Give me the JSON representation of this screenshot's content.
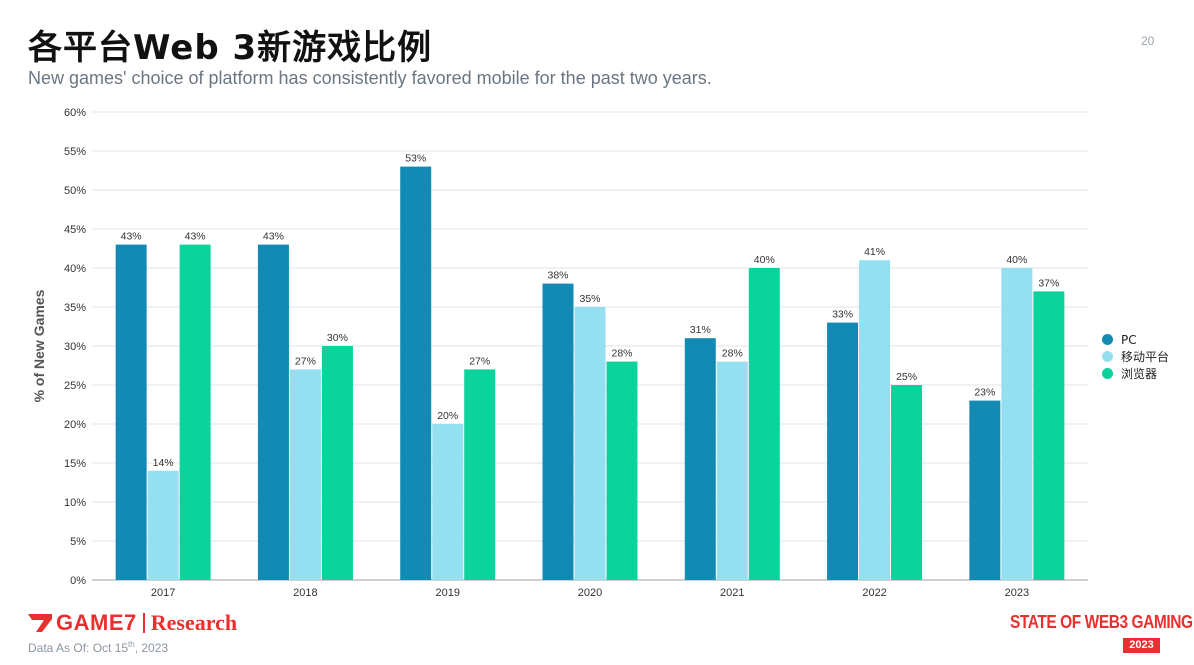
{
  "header": {
    "title": "各平台Web 3新游戏比例",
    "subtitle": "New games' choice of platform has consistently favored mobile for the past two years.",
    "page_number": "20"
  },
  "footer": {
    "brand": "GAME7",
    "brand_suffix": "Research",
    "data_as_of_prefix": "Data As Of: Oct 15",
    "data_as_of_sup": "th",
    "data_as_of_suffix": ", 2023",
    "report_name": "STATE OF WEB3 GAMING",
    "report_year": "2023"
  },
  "colors": {
    "accent": "#e8312f",
    "pc": "#138ab3",
    "mobile": "#94dff0",
    "browser": "#0bd39b"
  },
  "chart_data": {
    "type": "bar",
    "title": "各平台Web 3新游戏比例",
    "ylabel": "% of  New Games",
    "xlabel": "",
    "ylim": [
      0,
      60
    ],
    "yticks": [
      "0%",
      "5%",
      "10%",
      "15%",
      "20%",
      "25%",
      "30%",
      "35%",
      "40%",
      "45%",
      "50%",
      "55%",
      "60%"
    ],
    "grid": true,
    "legend_position": "right",
    "categories": [
      "2017",
      "2018",
      "2019",
      "2020",
      "2021",
      "2022",
      "2023"
    ],
    "series": [
      {
        "name": "PC",
        "color": "#138ab3",
        "values": [
          43,
          43,
          53,
          38,
          31,
          33,
          23
        ],
        "labels": [
          "43%",
          "43%",
          "53%",
          "38%",
          "31%",
          "33%",
          "23%"
        ]
      },
      {
        "name": "移动平台",
        "color": "#94dff0",
        "values": [
          0,
          27,
          20,
          35,
          28,
          41,
          40
        ],
        "labels": [
          "",
          "27%",
          "20%",
          "35%",
          "28%",
          "41%",
          "40%"
        ]
      },
      {
        "name": "浏览器",
        "color": "#0bd39b",
        "values": [
          43,
          30,
          27,
          28,
          40,
          25,
          37
        ],
        "labels": [
          "43%",
          "30%",
          "27%",
          "28%",
          "40%",
          "25%",
          "37%"
        ]
      }
    ],
    "extra_bars": [
      {
        "category": "2017",
        "series": "移动平台",
        "value": 14,
        "label": "14%"
      }
    ]
  }
}
